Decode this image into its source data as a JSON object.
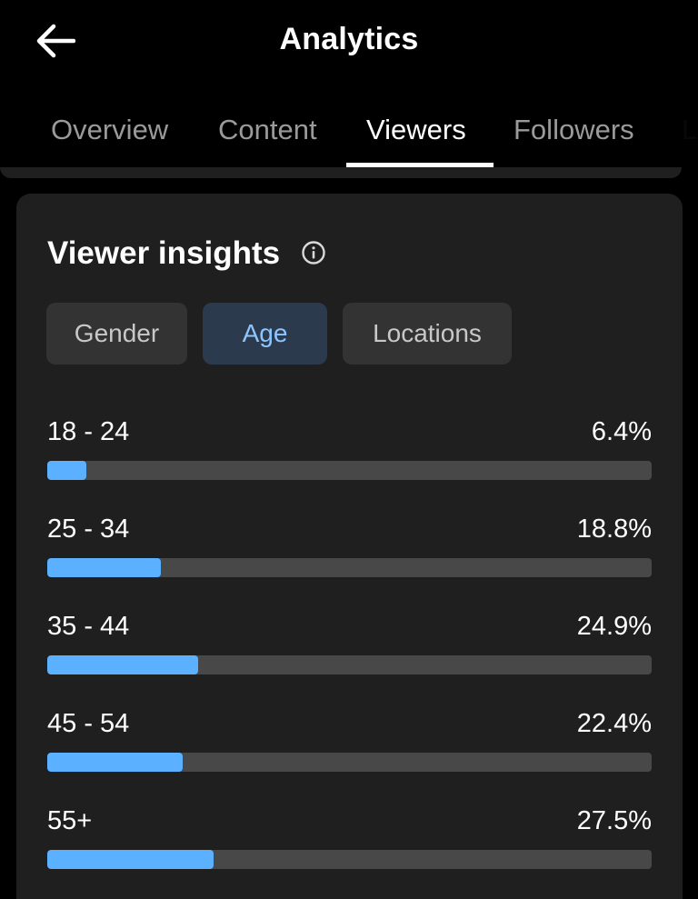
{
  "header": {
    "title": "Analytics",
    "back_icon": "arrow-left-icon"
  },
  "tabs": [
    {
      "label": "Overview",
      "active": false
    },
    {
      "label": "Content",
      "active": false
    },
    {
      "label": "Viewers",
      "active": true
    },
    {
      "label": "Followers",
      "active": false
    },
    {
      "label": "L",
      "active": false
    }
  ],
  "insights": {
    "title": "Viewer insights",
    "info_icon": "info-icon",
    "filters": [
      {
        "label": "Gender",
        "selected": false
      },
      {
        "label": "Age",
        "selected": true
      },
      {
        "label": "Locations",
        "selected": false
      }
    ],
    "age_groups": [
      {
        "label": "18 - 24",
        "value": "6.4%",
        "percent": 6.4
      },
      {
        "label": "25 - 34",
        "value": "18.8%",
        "percent": 18.8
      },
      {
        "label": "35 - 44",
        "value": "24.9%",
        "percent": 24.9
      },
      {
        "label": "45 - 54",
        "value": "22.4%",
        "percent": 22.4
      },
      {
        "label": "55+",
        "value": "27.5%",
        "percent": 27.5
      }
    ]
  },
  "colors": {
    "accent": "#5bb0ff",
    "selected_chip_text": "#8ec5ff",
    "background": "#000000",
    "card": "#1f1f1f"
  }
}
